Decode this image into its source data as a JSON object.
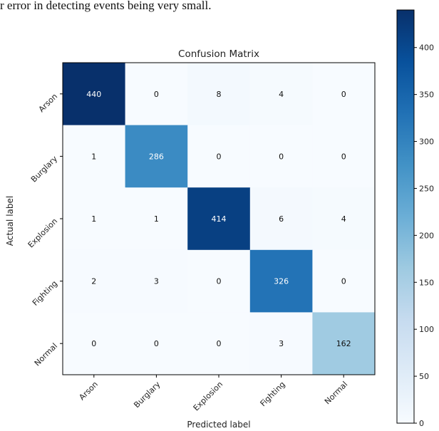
{
  "caption_fragment": "r error in detecting events being very small.",
  "chart_data": {
    "type": "heatmap",
    "title": "Confusion Matrix",
    "xlabel": "Predicted label",
    "ylabel": "Actual label",
    "x_categories": [
      "Arson",
      "Burglary",
      "Explosion",
      "Fighting",
      "Normal"
    ],
    "y_categories": [
      "Arson",
      "Burglary",
      "Explosion",
      "Fighting",
      "Normal"
    ],
    "values": [
      [
        440,
        0,
        8,
        4,
        0
      ],
      [
        1,
        286,
        0,
        0,
        0
      ],
      [
        1,
        1,
        414,
        6,
        4
      ],
      [
        2,
        3,
        0,
        326,
        0
      ],
      [
        0,
        0,
        0,
        3,
        162
      ]
    ],
    "colormap": "Blues",
    "colorbar": {
      "range": [
        0,
        440
      ],
      "ticks": [
        0,
        50,
        100,
        150,
        200,
        250,
        300,
        350,
        400
      ]
    },
    "grid": false
  }
}
